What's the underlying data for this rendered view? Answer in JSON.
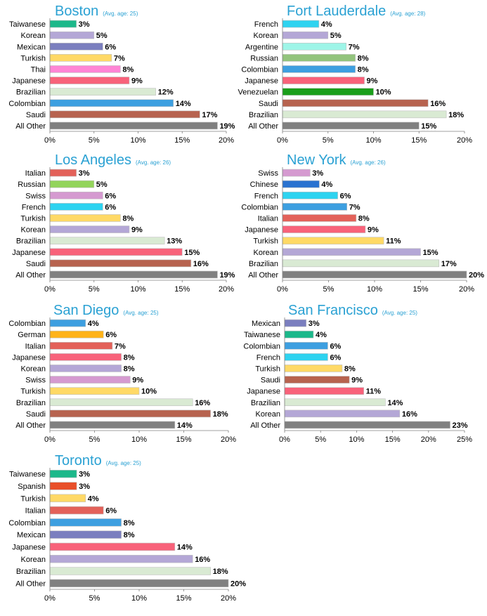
{
  "chart_data": [
    {
      "type": "bar",
      "orientation": "horizontal",
      "title": "Boston",
      "subtitle": "(Avg. age: 25)",
      "categories": [
        "Taiwanese",
        "Korean",
        "Mexican",
        "Turkish",
        "Thai",
        "Japanese",
        "Brazilian",
        "Colombian",
        "Saudi",
        "All Other"
      ],
      "values": [
        3,
        5,
        6,
        7,
        8,
        9,
        12,
        14,
        17,
        19
      ],
      "colors": [
        "#1cb88a",
        "#b4a7d6",
        "#7b7fbf",
        "#ffd966",
        "#ff85d5",
        "#f8627a",
        "#d9ead3",
        "#3d9fe0",
        "#b7634f",
        "#808080"
      ],
      "value_suffix": "%",
      "xlim": [
        0,
        20
      ],
      "ticks": [
        "0%",
        "5%",
        "10%",
        "15%",
        "20%"
      ]
    },
    {
      "type": "bar",
      "orientation": "horizontal",
      "title": "Fort Lauderdale",
      "subtitle": "(Avg. age: 28)",
      "categories": [
        "French",
        "Korean",
        "Argentine",
        "Russian",
        "Colombian",
        "Japanese",
        "Venezuelan",
        "Saudi",
        "Brazilian",
        "All Other"
      ],
      "values": [
        4,
        5,
        7,
        8,
        8,
        9,
        10,
        16,
        18,
        15
      ],
      "colors": [
        "#2ed3f0",
        "#b4a7d6",
        "#9ef5e8",
        "#93c47d",
        "#3d9fe0",
        "#f8627a",
        "#1a9e1a",
        "#b7634f",
        "#d9ead3",
        "#808080"
      ],
      "value_suffix": "%",
      "xlim": [
        0,
        20
      ],
      "ticks": [
        "0%",
        "5%",
        "10%",
        "15%",
        "20%"
      ]
    },
    {
      "type": "bar",
      "orientation": "horizontal",
      "title": "Los Angeles",
      "subtitle": "(Avg. age: 26)",
      "categories": [
        "Italian",
        "Russian",
        "Swiss",
        "French",
        "Turkish",
        "Korean",
        "Brazilian",
        "Japanese",
        "Saudi",
        "All Other"
      ],
      "values": [
        3,
        5,
        6,
        6,
        8,
        9,
        13,
        15,
        16,
        19
      ],
      "colors": [
        "#e36159",
        "#93d45a",
        "#d59ad0",
        "#2ed3f0",
        "#ffd966",
        "#b4a7d6",
        "#d9ead3",
        "#f8627a",
        "#b7634f",
        "#808080"
      ],
      "value_suffix": "%",
      "xlim": [
        0,
        20
      ],
      "ticks": [
        "0%",
        "5%",
        "10%",
        "15%",
        "20%"
      ]
    },
    {
      "type": "bar",
      "orientation": "horizontal",
      "title": "New York",
      "subtitle": "(Avg. age: 26)",
      "categories": [
        "Swiss",
        "Chinese",
        "French",
        "Colombian",
        "Italian",
        "Japanese",
        "Turkish",
        "Korean",
        "Brazilian",
        "All Other"
      ],
      "values": [
        3,
        4,
        6,
        7,
        8,
        9,
        11,
        15,
        17,
        20
      ],
      "colors": [
        "#d59ad0",
        "#2a73d0",
        "#2ed3f0",
        "#3d9fe0",
        "#e36159",
        "#f8627a",
        "#ffd966",
        "#b4a7d6",
        "#d9ead3",
        "#808080"
      ],
      "value_suffix": "%",
      "xlim": [
        0,
        20
      ],
      "ticks": [
        "0%",
        "5%",
        "10%",
        "15%",
        "20%"
      ]
    },
    {
      "type": "bar",
      "orientation": "horizontal",
      "title": "San Diego",
      "subtitle": "(Avg. age: 25)",
      "categories": [
        "Colombian",
        "German",
        "Italian",
        "Japanese",
        "Korean",
        "Swiss",
        "Turkish",
        "Brazilian",
        "Saudi",
        "All Other"
      ],
      "values": [
        4,
        6,
        7,
        8,
        8,
        9,
        10,
        16,
        18,
        14
      ],
      "colors": [
        "#3d9fe0",
        "#ffb31a",
        "#e36159",
        "#f8627a",
        "#b4a7d6",
        "#d59ad0",
        "#ffd966",
        "#d9ead3",
        "#b7634f",
        "#808080"
      ],
      "value_suffix": "%",
      "xlim": [
        0,
        20
      ],
      "ticks": [
        "0%",
        "5%",
        "10%",
        "15%",
        "20%"
      ]
    },
    {
      "type": "bar",
      "orientation": "horizontal",
      "title": "San Francisco",
      "subtitle": "(Avg. age: 25)",
      "categories": [
        "Mexican",
        "Taiwanese",
        "Colombian",
        "French",
        "Turkish",
        "Saudi",
        "Japanese",
        "Brazilian",
        "Korean",
        "All Other"
      ],
      "values": [
        3,
        4,
        6,
        6,
        8,
        9,
        11,
        14,
        16,
        23
      ],
      "colors": [
        "#7b7fbf",
        "#1cb88a",
        "#3d9fe0",
        "#2ed3f0",
        "#ffd966",
        "#b7634f",
        "#f8627a",
        "#d9ead3",
        "#b4a7d6",
        "#808080"
      ],
      "value_suffix": "%",
      "xlim": [
        0,
        25
      ],
      "ticks": [
        "0%",
        "5%",
        "10%",
        "15%",
        "20%",
        "25%"
      ]
    },
    {
      "type": "bar",
      "orientation": "horizontal",
      "title": "Toronto",
      "subtitle": "(Avg. age: 25)",
      "categories": [
        "Taiwanese",
        "Spanish",
        "Turkish",
        "Italian",
        "Colombian",
        "Mexican",
        "Japanese",
        "Korean",
        "Brazilian",
        "All Other"
      ],
      "values": [
        3,
        3,
        4,
        6,
        8,
        8,
        14,
        16,
        18,
        20
      ],
      "colors": [
        "#1cb88a",
        "#e8502a",
        "#ffd966",
        "#e36159",
        "#3d9fe0",
        "#7b7fbf",
        "#f8627a",
        "#b4a7d6",
        "#d9ead3",
        "#808080"
      ],
      "value_suffix": "%",
      "xlim": [
        0,
        20
      ],
      "ticks": [
        "0%",
        "5%",
        "10%",
        "15%",
        "20%"
      ]
    }
  ]
}
